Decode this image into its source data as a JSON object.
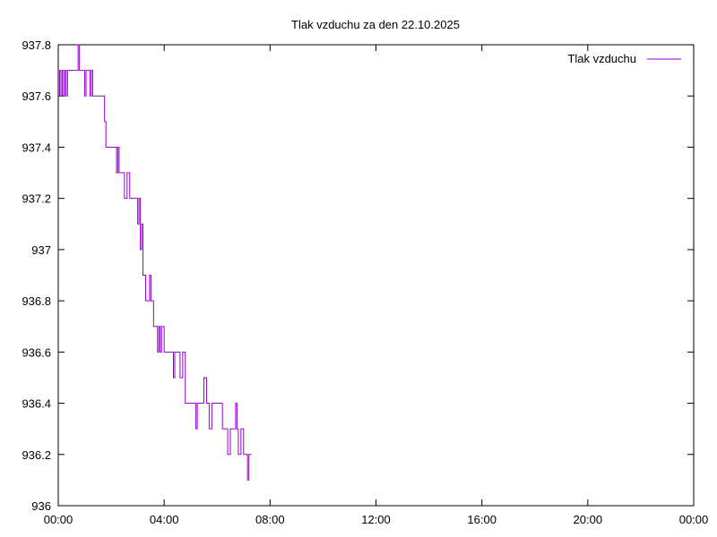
{
  "chart_data": {
    "type": "line",
    "title": "Tlak vzduchu za den 22.10.2025",
    "xlabel": "",
    "ylabel": "",
    "x_tick_labels": [
      "00:00",
      "04:00",
      "08:00",
      "12:00",
      "16:00",
      "20:00",
      "00:00"
    ],
    "y_tick_labels": [
      "936",
      "936.2",
      "936.4",
      "936.6",
      "936.8",
      "937",
      "937.2",
      "937.4",
      "937.6",
      "937.8"
    ],
    "x_unit": "hours",
    "xlim": [
      0,
      24
    ],
    "ylim": [
      936,
      937.8
    ],
    "grid": false,
    "legend_position": "top-right",
    "series": [
      {
        "name": "Tlak vzduchu",
        "color": "#9400d3",
        "x": [
          0.0,
          0.05,
          0.1,
          0.15,
          0.2,
          0.25,
          0.3,
          0.35,
          0.4,
          0.45,
          0.5,
          0.55,
          0.6,
          0.65,
          0.7,
          0.75,
          0.8,
          0.85,
          0.9,
          0.95,
          1.0,
          1.05,
          1.1,
          1.15,
          1.2,
          1.25,
          1.3,
          1.35,
          1.4,
          1.5,
          1.6,
          1.7,
          1.75,
          1.8,
          1.9,
          2.0,
          2.1,
          2.2,
          2.25,
          2.3,
          2.35,
          2.4,
          2.5,
          2.6,
          2.7,
          2.8,
          2.9,
          3.0,
          3.05,
          3.1,
          3.15,
          3.2,
          3.3,
          3.4,
          3.45,
          3.5,
          3.6,
          3.7,
          3.75,
          3.8,
          3.85,
          3.9,
          4.0,
          4.1,
          4.2,
          4.3,
          4.35,
          4.4,
          4.45,
          4.5,
          4.6,
          4.7,
          4.8,
          4.9,
          5.0,
          5.1,
          5.2,
          5.25,
          5.3,
          5.4,
          5.5,
          5.6,
          5.7,
          5.8,
          6.0,
          6.1,
          6.2,
          6.25,
          6.3,
          6.4,
          6.5,
          6.55,
          6.6,
          6.7,
          6.75,
          6.8,
          6.85,
          6.9,
          7.0,
          7.1,
          7.15,
          7.2,
          7.3
        ],
        "y": [
          937.6,
          937.7,
          937.6,
          937.7,
          937.6,
          937.7,
          937.6,
          937.7,
          937.7,
          937.7,
          937.7,
          937.7,
          937.7,
          937.7,
          937.7,
          937.8,
          937.7,
          937.7,
          937.7,
          937.7,
          937.6,
          937.7,
          937.7,
          937.7,
          937.6,
          937.7,
          937.6,
          937.6,
          937.6,
          937.6,
          937.6,
          937.6,
          937.5,
          937.4,
          937.4,
          937.4,
          937.4,
          937.3,
          937.4,
          937.3,
          937.3,
          937.3,
          937.2,
          937.3,
          937.2,
          937.2,
          937.2,
          937.1,
          937.2,
          937.0,
          937.1,
          936.9,
          936.8,
          936.8,
          936.9,
          936.8,
          936.7,
          936.7,
          936.6,
          936.7,
          936.6,
          936.7,
          936.6,
          936.6,
          936.6,
          936.6,
          936.5,
          936.6,
          936.6,
          936.6,
          936.5,
          936.6,
          936.4,
          936.4,
          936.4,
          936.4,
          936.3,
          936.4,
          936.4,
          936.4,
          936.5,
          936.4,
          936.3,
          936.4,
          936.4,
          936.4,
          936.3,
          936.3,
          936.3,
          936.2,
          936.3,
          936.3,
          936.3,
          936.4,
          936.3,
          936.2,
          936.2,
          936.3,
          936.2,
          936.2,
          936.1,
          936.2,
          936.2
        ]
      }
    ]
  }
}
